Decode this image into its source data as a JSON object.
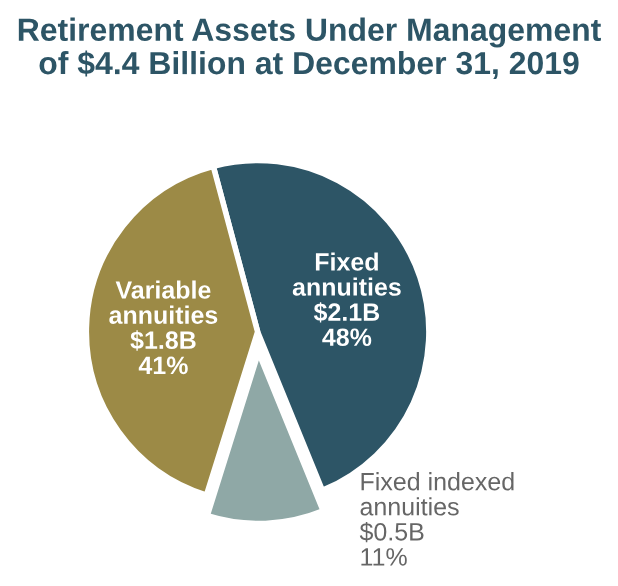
{
  "chart_data": {
    "type": "pie",
    "title": "Retirement Assets Under Management\nof $4.4 Billion at December 31, 2019",
    "categories": [
      "Fixed\nannuities",
      "Fixed indexed\nannuities",
      "Variable\nannuities"
    ],
    "values": [
      48,
      11,
      41
    ],
    "value_labels": [
      "$2.1B\n48%",
      "$0.5B\n11%",
      "$1.8B\n41%"
    ],
    "colors": [
      "#2d5566",
      "#8fa8a6",
      "#9c8a46"
    ],
    "legend": false
  }
}
